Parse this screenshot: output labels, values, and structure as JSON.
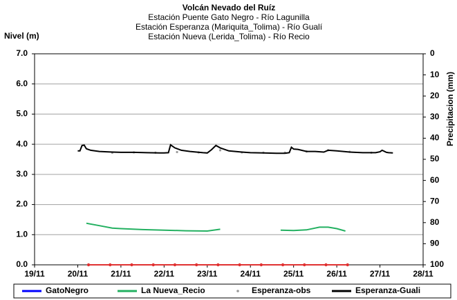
{
  "chart_data": {
    "type": "line",
    "title": "Volcán Nevado del Ruíz",
    "subtitles": [
      "Estación Puente Gato Negro - Río Lagunilla",
      "Estación Esperanza (Mariquita_Tolima) - Río Gualí",
      "Estación Nueva (Lerida_Tolima) - Río Recio"
    ],
    "ylabel": "Nivel (m)",
    "y2label": "Precipitacion (mm)",
    "xlim": [
      19,
      28
    ],
    "xticks": [
      {
        "value": 19,
        "label": "19/11"
      },
      {
        "value": 20,
        "label": "20/11"
      },
      {
        "value": 21,
        "label": "21/11"
      },
      {
        "value": 22,
        "label": "22/11"
      },
      {
        "value": 23,
        "label": "23/11"
      },
      {
        "value": 24,
        "label": "24/11"
      },
      {
        "value": 25,
        "label": "25/11"
      },
      {
        "value": 26,
        "label": "26/11"
      },
      {
        "value": 27,
        "label": "27/11"
      },
      {
        "value": 28,
        "label": "28/11"
      }
    ],
    "ylim": [
      0,
      7
    ],
    "yticks": [
      {
        "value": 0,
        "label": "0.0"
      },
      {
        "value": 1,
        "label": "1.0"
      },
      {
        "value": 2,
        "label": "2.0"
      },
      {
        "value": 3,
        "label": "3.0"
      },
      {
        "value": 4,
        "label": "4.0"
      },
      {
        "value": 5,
        "label": "5.0"
      },
      {
        "value": 6,
        "label": "6.0"
      },
      {
        "value": 7,
        "label": "7.0"
      }
    ],
    "y2lim": [
      100,
      0
    ],
    "y2ticks": [
      0,
      10,
      20,
      30,
      40,
      50,
      60,
      70,
      80,
      90,
      100
    ],
    "grid": true,
    "legend": "bottom",
    "series": [
      {
        "name": "GatoNegro",
        "color": "#0000ff",
        "line_color": "#e03030",
        "style": "line-markers",
        "x": [
          20.25,
          20.75,
          21.25,
          21.75,
          22.25,
          22.75,
          23.25,
          23.75,
          24.25,
          24.75,
          25.25,
          25.75,
          26.25
        ],
        "values": [
          0,
          0,
          0,
          0,
          0,
          0,
          0,
          0,
          0,
          0,
          0,
          0,
          0
        ]
      },
      {
        "name": "La Nueva_Recio",
        "color": "#22b060",
        "style": "line",
        "x": [
          20.2,
          20.5,
          20.8,
          21.0,
          21.5,
          22.0,
          22.5,
          23.0,
          23.3,
          24.0,
          24.7,
          25.0,
          25.3,
          25.6,
          25.8,
          26.0,
          26.2
        ],
        "values": [
          1.38,
          1.3,
          1.22,
          1.2,
          1.17,
          1.15,
          1.13,
          1.12,
          1.18,
          null,
          1.15,
          1.14,
          1.16,
          1.25,
          1.25,
          1.2,
          1.12
        ]
      },
      {
        "name": "Esperanza-obs",
        "color": "#999999",
        "style": "markers",
        "x": [
          20.8,
          21.3,
          21.8,
          22.3,
          22.8,
          23.3,
          23.8,
          24.3,
          24.8,
          25.3,
          25.8,
          26.3,
          26.8
        ],
        "values": [
          3.72,
          3.73,
          3.72,
          3.74,
          3.73,
          3.8,
          3.73,
          3.72,
          3.72,
          3.76,
          3.8,
          3.75,
          3.72
        ]
      },
      {
        "name": "Esperanza-Guali",
        "color": "#000000",
        "style": "line",
        "x": [
          20.0,
          20.05,
          20.1,
          20.15,
          20.2,
          20.3,
          20.5,
          20.8,
          21.0,
          21.3,
          21.6,
          21.9,
          22.0,
          22.1,
          22.15,
          22.25,
          22.4,
          22.6,
          22.9,
          23.0,
          23.1,
          23.2,
          23.3,
          23.5,
          23.8,
          24.0,
          24.3,
          24.6,
          24.8,
          24.9,
          24.95,
          25.0,
          25.1,
          25.3,
          25.5,
          25.7,
          25.8,
          26.0,
          26.3,
          26.6,
          26.9,
          27.0,
          27.05,
          27.15,
          27.2,
          27.3
        ],
        "values": [
          3.78,
          3.78,
          3.96,
          3.97,
          3.85,
          3.8,
          3.76,
          3.74,
          3.73,
          3.73,
          3.72,
          3.71,
          3.71,
          3.72,
          3.98,
          3.88,
          3.8,
          3.76,
          3.72,
          3.71,
          3.82,
          3.96,
          3.88,
          3.78,
          3.74,
          3.72,
          3.71,
          3.7,
          3.7,
          3.72,
          3.9,
          3.84,
          3.83,
          3.76,
          3.76,
          3.74,
          3.8,
          3.78,
          3.74,
          3.72,
          3.72,
          3.75,
          3.8,
          3.73,
          3.72,
          3.71
        ]
      }
    ]
  }
}
